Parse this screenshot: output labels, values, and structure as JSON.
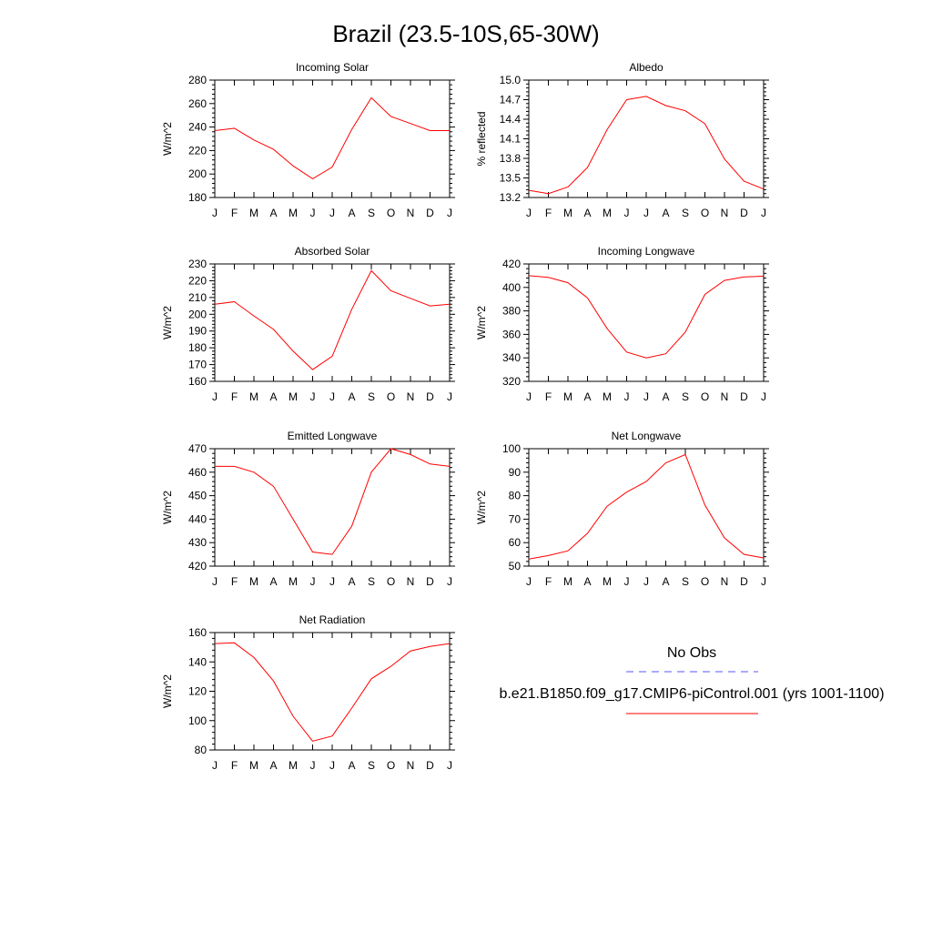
{
  "title": "Brazil (23.5-10S,65-30W)",
  "legend": {
    "obs_label": "No Obs",
    "obs_color": "#5555ff",
    "model_label": "b.e21.B1850.f09_g17.CMIP6-piControl.001 (yrs 1001-1100)",
    "model_color": "#ff0000"
  },
  "chart_data": [
    {
      "type": "line",
      "title": "Incoming Solar",
      "ylabel": "W/m^2",
      "categories": [
        "J",
        "F",
        "M",
        "A",
        "M",
        "J",
        "J",
        "A",
        "S",
        "O",
        "N",
        "D",
        "J"
      ],
      "ylim": [
        180,
        280
      ],
      "yticks": [
        "180",
        "200",
        "220",
        "240",
        "260",
        "280"
      ],
      "grid": false,
      "series": [
        {
          "values": [
            237,
            239,
            229,
            221,
            207,
            196,
            206,
            238,
            265,
            249,
            243,
            237,
            237
          ]
        }
      ]
    },
    {
      "type": "line",
      "title": "Albedo",
      "ylabel": "% reflected",
      "categories": [
        "J",
        "F",
        "M",
        "A",
        "M",
        "J",
        "J",
        "A",
        "S",
        "O",
        "N",
        "D",
        "J"
      ],
      "ylim": [
        13.2,
        15.0
      ],
      "yticks": [
        "13.2",
        "13.5",
        "13.8",
        "14.1",
        "14.4",
        "14.7",
        "15.0"
      ],
      "grid": false,
      "series": [
        {
          "values": [
            13.31,
            13.26,
            13.36,
            13.66,
            14.24,
            14.7,
            14.75,
            14.61,
            14.53,
            14.33,
            13.79,
            13.45,
            13.33
          ]
        }
      ]
    },
    {
      "type": "line",
      "title": "Absorbed Solar",
      "ylabel": "W/m^2",
      "categories": [
        "J",
        "F",
        "M",
        "A",
        "M",
        "J",
        "J",
        "A",
        "S",
        "O",
        "N",
        "D",
        "J"
      ],
      "ylim": [
        160,
        230
      ],
      "yticks": [
        "160",
        "170",
        "180",
        "190",
        "200",
        "210",
        "220",
        "230"
      ],
      "grid": false,
      "series": [
        {
          "values": [
            206,
            207.5,
            199,
            191,
            178,
            167,
            175,
            203,
            226,
            214,
            209.5,
            205,
            206
          ]
        }
      ]
    },
    {
      "type": "line",
      "title": "Incoming Longwave",
      "ylabel": "W/m^2",
      "categories": [
        "J",
        "F",
        "M",
        "A",
        "M",
        "J",
        "J",
        "A",
        "S",
        "O",
        "N",
        "D",
        "J"
      ],
      "ylim": [
        320,
        420
      ],
      "yticks": [
        "320",
        "340",
        "360",
        "380",
        "400",
        "420"
      ],
      "grid": false,
      "series": [
        {
          "values": [
            410,
            408.5,
            404,
            391,
            365,
            345,
            340,
            343.5,
            362,
            394,
            406,
            409,
            409.5
          ]
        }
      ]
    },
    {
      "type": "line",
      "title": "Emitted Longwave",
      "ylabel": "W/m^2",
      "categories": [
        "J",
        "F",
        "M",
        "A",
        "M",
        "J",
        "J",
        "A",
        "S",
        "O",
        "N",
        "D",
        "J"
      ],
      "ylim": [
        420,
        470
      ],
      "yticks": [
        "420",
        "430",
        "440",
        "450",
        "460",
        "470"
      ],
      "grid": false,
      "series": [
        {
          "values": [
            462.5,
            462.5,
            460,
            454,
            440,
            426,
            425,
            437,
            460,
            470,
            467.5,
            463.5,
            462.5
          ]
        }
      ]
    },
    {
      "type": "line",
      "title": "Net Longwave",
      "ylabel": "W/m^2",
      "categories": [
        "J",
        "F",
        "M",
        "A",
        "M",
        "J",
        "J",
        "A",
        "S",
        "O",
        "N",
        "D",
        "J"
      ],
      "ylim": [
        50,
        100
      ],
      "yticks": [
        "50",
        "60",
        "70",
        "80",
        "90",
        "100"
      ],
      "grid": false,
      "series": [
        {
          "values": [
            53,
            54.5,
            56.5,
            64,
            75.5,
            81.5,
            86,
            94,
            97.5,
            76,
            62,
            55,
            53.5
          ]
        }
      ]
    },
    {
      "type": "line",
      "title": "Net Radiation",
      "ylabel": "W/m^2",
      "categories": [
        "J",
        "F",
        "M",
        "A",
        "M",
        "J",
        "J",
        "A",
        "S",
        "O",
        "N",
        "D",
        "J"
      ],
      "ylim": [
        80,
        160
      ],
      "yticks": [
        "80",
        "100",
        "120",
        "140",
        "160"
      ],
      "grid": false,
      "series": [
        {
          "values": [
            152.5,
            153,
            143,
            127,
            103,
            86,
            89.5,
            108.5,
            128.5,
            137,
            147.5,
            150.5,
            152.5
          ]
        }
      ]
    }
  ]
}
